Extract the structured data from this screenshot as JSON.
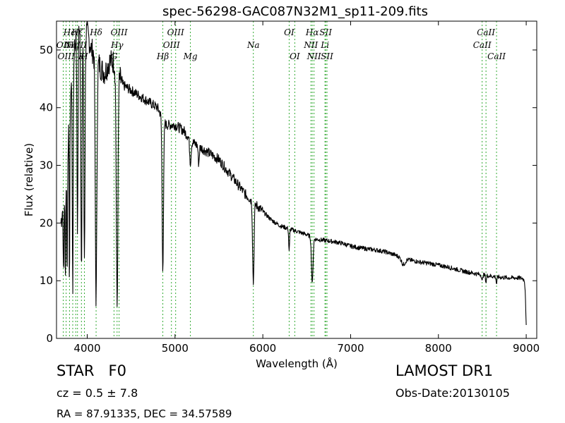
{
  "chart_data": {
    "type": "line",
    "title": "spec-56298-GAC087N32M1_sp11-209.fits",
    "xlabel": "Wavelength (Å)",
    "ylabel": "Flux (relative)",
    "xlim": [
      3650,
      9120
    ],
    "ylim": [
      0,
      55
    ],
    "x_ticks": [
      4000,
      5000,
      6000,
      7000,
      8000,
      9000
    ],
    "y_ticks": [
      0,
      10,
      20,
      30,
      40,
      50
    ],
    "grid": false,
    "line_color": "#000000",
    "marker_color": "#33aa33",
    "series": [
      {
        "continuum": [
          [
            3700,
            20
          ],
          [
            3760,
            28
          ],
          [
            3800,
            40
          ],
          [
            3850,
            50
          ],
          [
            3900,
            55
          ],
          [
            3950,
            55
          ],
          [
            4000,
            53
          ],
          [
            4050,
            50
          ],
          [
            4100,
            49
          ],
          [
            4150,
            47
          ],
          [
            4200,
            46
          ],
          [
            4250,
            48
          ],
          [
            4300,
            48
          ],
          [
            4400,
            44
          ],
          [
            4500,
            43
          ],
          [
            4600,
            42
          ],
          [
            4700,
            41
          ],
          [
            4800,
            40
          ],
          [
            4900,
            37
          ],
          [
            5000,
            37
          ],
          [
            5100,
            36
          ],
          [
            5200,
            34
          ],
          [
            5300,
            33
          ],
          [
            5400,
            32
          ],
          [
            5500,
            31
          ],
          [
            5600,
            29
          ],
          [
            5700,
            27
          ],
          [
            5800,
            25
          ],
          [
            5900,
            23.5
          ],
          [
            6000,
            22
          ],
          [
            6100,
            20.5
          ],
          [
            6200,
            19.5
          ],
          [
            6300,
            19
          ],
          [
            6400,
            18.5
          ],
          [
            6500,
            18
          ],
          [
            6600,
            17.2
          ],
          [
            6700,
            17
          ],
          [
            6800,
            16.8
          ],
          [
            6900,
            16.5
          ],
          [
            7000,
            16
          ],
          [
            7100,
            15.7
          ],
          [
            7200,
            15.5
          ],
          [
            7300,
            15.3
          ],
          [
            7400,
            15
          ],
          [
            7500,
            14.5
          ],
          [
            7600,
            13.8
          ],
          [
            7700,
            13.5
          ],
          [
            7800,
            13.2
          ],
          [
            7900,
            13
          ],
          [
            8000,
            12.7
          ],
          [
            8100,
            12.4
          ],
          [
            8200,
            12
          ],
          [
            8300,
            11.6
          ],
          [
            8400,
            11.3
          ],
          [
            8500,
            11
          ],
          [
            8600,
            10.8
          ],
          [
            8700,
            10.6
          ],
          [
            8800,
            10.5
          ],
          [
            8900,
            10.5
          ],
          [
            8960,
            10.4
          ],
          [
            8980,
            10
          ],
          [
            8990,
            8
          ],
          [
            9000,
            2
          ]
        ],
        "absorption": [
          [
            3730,
            14,
            4
          ],
          [
            3750,
            16,
            4
          ],
          [
            3771,
            20,
            4
          ],
          [
            3798,
            30,
            4
          ],
          [
            3835,
            40,
            5
          ],
          [
            3889,
            35,
            6
          ],
          [
            3934,
            44,
            7
          ],
          [
            3968,
            40,
            7
          ],
          [
            4101,
            42,
            9
          ],
          [
            4340,
            41,
            9
          ],
          [
            4861,
            26,
            8
          ],
          [
            5175,
            4,
            8
          ],
          [
            5270,
            3,
            6
          ],
          [
            5892,
            14,
            8
          ],
          [
            6300,
            4,
            5
          ],
          [
            6563,
            8,
            9
          ],
          [
            7600,
            1,
            20
          ],
          [
            8498,
            1.2,
            5
          ],
          [
            8542,
            1.2,
            5
          ],
          [
            8662,
            1.2,
            5
          ]
        ],
        "noise": 1.1
      }
    ],
    "line_markers": [
      {
        "label": "Hϵ",
        "wavelength": 3798,
        "row": 1
      },
      {
        "label": "OII",
        "wavelength": 3727,
        "row": 2
      },
      {
        "label": "OIII",
        "wavelength": 3760,
        "row": 3
      },
      {
        "label": "Hη",
        "wavelength": 3835,
        "row": 2
      },
      {
        "label": "Hζ",
        "wavelength": 3889,
        "row": 1
      },
      {
        "label": "K",
        "wavelength": 3934,
        "row": 3
      },
      {
        "label": "H",
        "wavelength": 3968,
        "row": 3
      },
      {
        "label": "NeIII",
        "wavelength": 3869,
        "row": 2
      },
      {
        "label": "Hδ",
        "wavelength": 4101,
        "row": 1
      },
      {
        "label": "OIII",
        "wavelength": 4363,
        "row": 1
      },
      {
        "label": "Hγ",
        "wavelength": 4340,
        "row": 2
      },
      {
        "label": "G",
        "wavelength": 4305,
        "row": 3
      },
      {
        "label": "Hβ",
        "wavelength": 4861,
        "row": 3
      },
      {
        "label": "OIII",
        "wavelength": 5007,
        "row": 1
      },
      {
        "label": "OIII",
        "wavelength": 4959,
        "row": 2
      },
      {
        "label": "Mg",
        "wavelength": 5175,
        "row": 3
      },
      {
        "label": "Na",
        "wavelength": 5892,
        "row": 2
      },
      {
        "label": "OI",
        "wavelength": 6300,
        "row": 1
      },
      {
        "label": "OI",
        "wavelength": 6364,
        "row": 3
      },
      {
        "label": "Hα",
        "wavelength": 6563,
        "row": 1
      },
      {
        "label": "SII",
        "wavelength": 6716,
        "row": 1
      },
      {
        "label": "NII",
        "wavelength": 6548,
        "row": 2
      },
      {
        "label": "Li",
        "wavelength": 6708,
        "row": 2
      },
      {
        "label": "NII",
        "wavelength": 6583,
        "row": 3
      },
      {
        "label": "SII",
        "wavelength": 6731,
        "row": 3
      },
      {
        "label": "CaII",
        "wavelength": 8542,
        "row": 1
      },
      {
        "label": "CaII",
        "wavelength": 8498,
        "row": 2
      },
      {
        "label": "CaII",
        "wavelength": 8662,
        "row": 3
      }
    ]
  },
  "info": {
    "class_label": "STAR   F0",
    "cz_text": "cz = 0.5 ± 7.8",
    "coords_text": "RA = 87.91335, DEC = 34.57589",
    "survey": "LAMOST DR1",
    "obs_date": "Obs-Date:20130105"
  }
}
